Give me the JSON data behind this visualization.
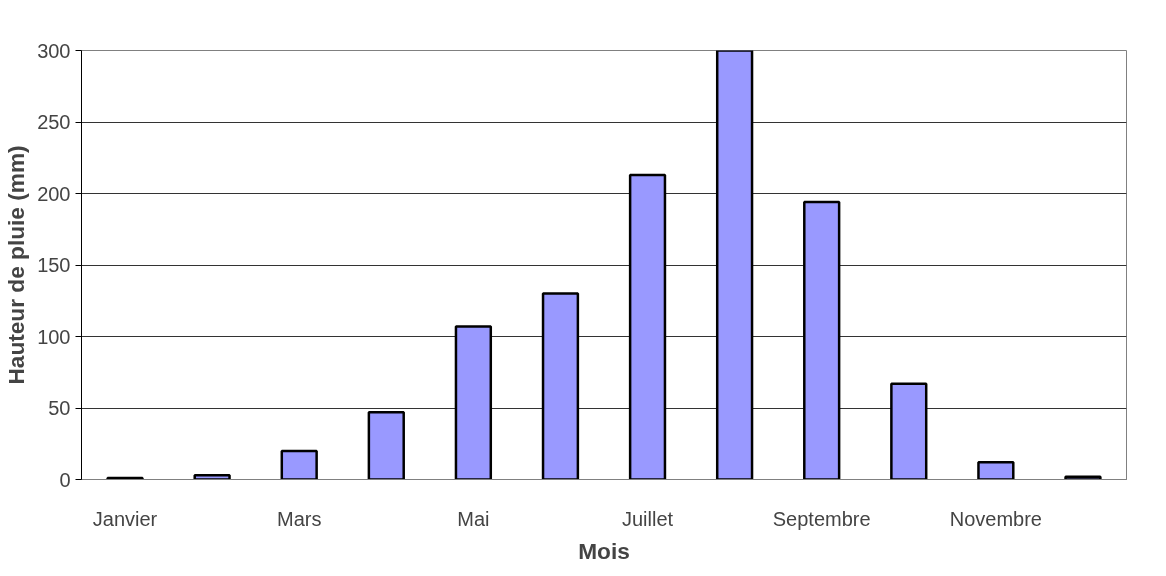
{
  "chart_data": {
    "type": "bar",
    "xlabel": "Mois",
    "ylabel": "Hauteur de pluie (mm)",
    "categories": [
      "Janvier",
      null,
      "Mars",
      null,
      "Mai",
      null,
      "Juillet",
      null,
      "Septembre",
      null,
      "Novembre",
      null
    ],
    "values": [
      1,
      3,
      20,
      47,
      107,
      130,
      213,
      300,
      194,
      67,
      12,
      2
    ],
    "color": "#9999ff",
    "ylim": [
      0,
      300
    ],
    "yticks": [
      0,
      50,
      100,
      150,
      200,
      250,
      300
    ],
    "grid": "y"
  }
}
